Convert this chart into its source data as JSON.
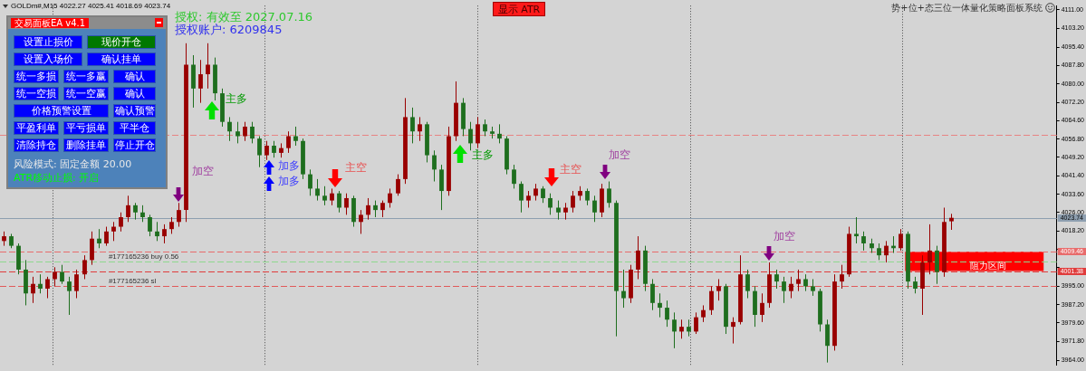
{
  "chart_data": [
    {
      "type": "candlestick",
      "title": "GOLDm#,M15 4022.27 4025.41 4018.69 4023.74",
      "categories": [
        null,
        null,
        null,
        null,
        null,
        null,
        null,
        null,
        null,
        null,
        null,
        null,
        null,
        null,
        null,
        null,
        null,
        null,
        null,
        null,
        null,
        null,
        null,
        null,
        null,
        null,
        null,
        null,
        null,
        null,
        null,
        null,
        null,
        null,
        null,
        null,
        null,
        null,
        null,
        null,
        null,
        null,
        null,
        null,
        null,
        null,
        null,
        null,
        null,
        null,
        null,
        null,
        null,
        null,
        null,
        null,
        null,
        null,
        null,
        null,
        null,
        null,
        null,
        null,
        null,
        null,
        null,
        null,
        null,
        null,
        null,
        null,
        null,
        null,
        null,
        null,
        null,
        null,
        null,
        null,
        null,
        null,
        null,
        null,
        null,
        null,
        null,
        null,
        null,
        null,
        null,
        null,
        null,
        null,
        null,
        null,
        null,
        null,
        null,
        null,
        null,
        null,
        null,
        null,
        null,
        null,
        null,
        null,
        null,
        null,
        null,
        null,
        null,
        null,
        null,
        null,
        null,
        null,
        null,
        null,
        null,
        null,
        null,
        null,
        null,
        null,
        null,
        null,
        null,
        null,
        null,
        null,
        null,
        null,
        null,
        null,
        null,
        null,
        null,
        null,
        null,
        null,
        null,
        null,
        null
      ],
      "ohlc": [
        [
          4014,
          4018,
          4012,
          4016
        ],
        [
          4016,
          4017,
          4011,
          4012
        ],
        [
          4012,
          4013,
          4000,
          4002
        ],
        [
          4002,
          4006,
          3987,
          3992
        ],
        [
          3992,
          3999,
          3988,
          3996
        ],
        [
          3996,
          4000,
          3992,
          3994
        ],
        [
          3994,
          3999,
          3990,
          3998
        ],
        [
          3998,
          4003,
          3995,
          4001
        ],
        [
          4001,
          4004,
          3996,
          3997
        ],
        [
          3997,
          3999,
          3983,
          3993
        ],
        [
          3993,
          4002,
          3990,
          4000
        ],
        [
          4000,
          4008,
          3998,
          4006
        ],
        [
          4006,
          4018,
          4004,
          4015
        ],
        [
          4015,
          4019,
          4011,
          4013
        ],
        [
          4013,
          4020,
          4012,
          4018
        ],
        [
          4018,
          4022,
          4014,
          4020
        ],
        [
          4020,
          4026,
          4018,
          4024
        ],
        [
          4024,
          4033,
          4022,
          4029
        ],
        [
          4029,
          4030,
          4023,
          4026
        ],
        [
          4026,
          4029,
          4022,
          4024
        ],
        [
          4024,
          4025,
          4016,
          4018
        ],
        [
          4018,
          4022,
          4014,
          4016
        ],
        [
          4016,
          4021,
          4013,
          4019
        ],
        [
          4019,
          4024,
          4017,
          4022
        ],
        [
          4022,
          4030,
          4020,
          4027
        ],
        [
          4027,
          4097,
          4022,
          4088
        ],
        [
          4088,
          4092,
          4070,
          4078
        ],
        [
          4078,
          4090,
          4072,
          4084
        ],
        [
          4084,
          4097,
          4078,
          4088
        ],
        [
          4088,
          4091,
          4073,
          4076
        ],
        [
          4076,
          4078,
          4062,
          4064
        ],
        [
          4064,
          4066,
          4056,
          4060
        ],
        [
          4060,
          4064,
          4055,
          4058
        ],
        [
          4058,
          4064,
          4056,
          4062
        ],
        [
          4062,
          4064,
          4055,
          4057
        ],
        [
          4057,
          4058,
          4045,
          4050
        ],
        [
          4050,
          4056,
          4048,
          4054
        ],
        [
          4054,
          4056,
          4049,
          4051
        ],
        [
          4051,
          4055,
          4049,
          4053
        ],
        [
          4053,
          4060,
          4051,
          4058
        ],
        [
          4058,
          4062,
          4054,
          4056
        ],
        [
          4056,
          4057,
          4040,
          4042
        ],
        [
          4042,
          4044,
          4033,
          4036
        ],
        [
          4036,
          4040,
          4031,
          4033
        ],
        [
          4033,
          4037,
          4029,
          4031
        ],
        [
          4031,
          4036,
          4029,
          4034
        ],
        [
          4034,
          4035,
          4026,
          4028
        ],
        [
          4028,
          4034,
          4025,
          4032
        ],
        [
          4032,
          4033,
          4020,
          4022
        ],
        [
          4022,
          4027,
          4017,
          4025
        ],
        [
          4025,
          4032,
          4023,
          4029
        ],
        [
          4029,
          4031,
          4024,
          4027
        ],
        [
          4027,
          4031,
          4024,
          4030
        ],
        [
          4030,
          4036,
          4028,
          4034
        ],
        [
          4034,
          4042,
          4033,
          4040
        ],
        [
          4040,
          4074,
          4038,
          4066
        ],
        [
          4066,
          4070,
          4055,
          4060
        ],
        [
          4060,
          4066,
          4056,
          4063
        ],
        [
          4063,
          4064,
          4047,
          4050
        ],
        [
          4050,
          4052,
          4039,
          4044
        ],
        [
          4044,
          4046,
          4027,
          4035
        ],
        [
          4035,
          4062,
          4033,
          4058
        ],
        [
          4058,
          4081,
          4056,
          4072
        ],
        [
          4072,
          4074,
          4058,
          4061
        ],
        [
          4061,
          4064,
          4052,
          4055
        ],
        [
          4055,
          4066,
          4053,
          4063
        ],
        [
          4063,
          4065,
          4058,
          4060
        ],
        [
          4060,
          4062,
          4057,
          4059
        ],
        [
          4059,
          4063,
          4055,
          4057
        ],
        [
          4057,
          4058,
          4042,
          4044
        ],
        [
          4044,
          4046,
          4036,
          4038
        ],
        [
          4038,
          4039,
          4026,
          4031
        ],
        [
          4031,
          4035,
          4028,
          4033
        ],
        [
          4033,
          4038,
          4031,
          4036
        ],
        [
          4036,
          4037,
          4030,
          4032
        ],
        [
          4032,
          4034,
          4025,
          4028
        ],
        [
          4028,
          4031,
          4023,
          4026
        ],
        [
          4026,
          4030,
          4023,
          4028
        ],
        [
          4028,
          4035,
          4026,
          4033
        ],
        [
          4033,
          4037,
          4031,
          4035
        ],
        [
          4035,
          4036,
          4029,
          4031
        ],
        [
          4031,
          4033,
          4022,
          4026
        ],
        [
          4026,
          4038,
          4024,
          4036
        ],
        [
          4036,
          4039,
          4028,
          4030
        ],
        [
          4030,
          4031,
          3974,
          3993
        ],
        [
          3993,
          4002,
          3986,
          3990
        ],
        [
          3990,
          4004,
          3988,
          4002
        ],
        [
          4002,
          4016,
          3998,
          4010
        ],
        [
          4010,
          4012,
          3993,
          3996
        ],
        [
          3996,
          3998,
          3985,
          3988
        ],
        [
          3988,
          3992,
          3982,
          3986
        ],
        [
          3986,
          3989,
          3978,
          3981
        ],
        [
          3981,
          3984,
          3969,
          3976
        ],
        [
          3976,
          3981,
          3973,
          3978
        ],
        [
          3978,
          3981,
          3974,
          3976
        ],
        [
          3976,
          3984,
          3975,
          3982
        ],
        [
          3982,
          3987,
          3980,
          3985
        ],
        [
          3985,
          3995,
          3983,
          3993
        ],
        [
          3993,
          3998,
          3989,
          3995
        ],
        [
          3995,
          3996,
          3975,
          3978
        ],
        [
          3978,
          3982,
          3971,
          3980
        ],
        [
          3980,
          4008,
          3979,
          4000
        ],
        [
          4000,
          4002,
          3990,
          3993
        ],
        [
          3993,
          3995,
          3978,
          3983
        ],
        [
          3983,
          3992,
          3980,
          3988
        ],
        [
          3988,
          4005,
          3986,
          4000
        ],
        [
          4000,
          4002,
          3994,
          3997
        ],
        [
          3997,
          3999,
          3988,
          3993
        ],
        [
          3993,
          3999,
          3990,
          3996
        ],
        [
          3996,
          4002,
          3993,
          3998
        ],
        [
          3998,
          4000,
          3993,
          3995
        ],
        [
          3995,
          3998,
          3991,
          3993
        ],
        [
          3993,
          3994,
          3976,
          3979
        ],
        [
          3979,
          3981,
          3963,
          3970
        ],
        [
          3970,
          4000,
          3968,
          3997
        ],
        [
          3997,
          4004,
          3994,
          4000
        ],
        [
          4000,
          4020,
          3999,
          4017
        ],
        [
          4017,
          4024,
          4013,
          4016
        ],
        [
          4016,
          4018,
          4010,
          4013
        ],
        [
          4013,
          4015,
          4009,
          4011
        ],
        [
          4011,
          4013,
          4006,
          4008
        ],
        [
          4008,
          4014,
          4005,
          4012
        ],
        [
          4012,
          4016,
          4009,
          4011
        ],
        [
          4011,
          4019,
          4010,
          4017
        ],
        [
          4017,
          4018,
          3994,
          3997
        ],
        [
          3997,
          3999,
          3992,
          3994
        ],
        [
          3994,
          4008,
          3983,
          4005
        ],
        [
          4005,
          4021,
          4000,
          4010
        ],
        [
          4010,
          4012,
          3996,
          4001
        ],
        [
          4001,
          4028,
          3999,
          4022
        ],
        [
          4022.27,
          4025.41,
          4018.69,
          4023.74
        ],
        null,
        null,
        null,
        null,
        null,
        null,
        null,
        null,
        null,
        null,
        null,
        null,
        null,
        null
      ],
      "colors": [
        "#990000",
        "#1e6e1e",
        "#1e6e1e",
        "#1e6e1e",
        "#990000",
        "#1e6e1e",
        "#990000",
        "#990000",
        "#1e6e1e",
        "#1e6e1e",
        "#990000",
        "#990000",
        "#990000",
        "#1e6e1e",
        "#990000",
        "#990000",
        "#990000",
        "#990000",
        "#1e6e1e",
        "#1e6e1e",
        "#1e6e1e",
        "#1e6e1e",
        "#990000",
        "#990000",
        "#990000",
        "#990000",
        "#1e6e1e",
        "#990000",
        "#990000",
        "#1e6e1e",
        "#1e6e1e",
        "#1e6e1e",
        "#1e6e1e",
        "#990000",
        "#1e6e1e",
        "#1e6e1e",
        "#990000",
        "#1e6e1e",
        "#990000",
        "#990000",
        "#1e6e1e",
        "#1e6e1e",
        "#1e6e1e",
        "#1e6e1e",
        "#1e6e1e",
        "#990000",
        "#1e6e1e",
        "#990000",
        "#1e6e1e",
        "#990000",
        "#990000",
        "#1e6e1e",
        "#990000",
        "#990000",
        "#990000",
        "#990000",
        "#1e6e1e",
        "#990000",
        "#1e6e1e",
        "#1e6e1e",
        "#1e6e1e",
        "#990000",
        "#990000",
        "#1e6e1e",
        "#1e6e1e",
        "#990000",
        "#1e6e1e",
        "#1e6e1e",
        "#1e6e1e",
        "#1e6e1e",
        "#1e6e1e",
        "#1e6e1e",
        "#990000",
        "#990000",
        "#1e6e1e",
        "#1e6e1e",
        "#1e6e1e",
        "#990000",
        "#990000",
        "#990000",
        "#1e6e1e",
        "#1e6e1e",
        "#990000",
        "#1e6e1e",
        "#1e6e1e",
        "#1e6e1e",
        "#990000",
        "#990000",
        "#1e6e1e",
        "#1e6e1e",
        "#1e6e1e",
        "#1e6e1e",
        "#1e6e1e",
        "#990000",
        "#1e6e1e",
        "#990000",
        "#990000",
        "#990000",
        "#990000",
        "#1e6e1e",
        "#990000",
        "#990000",
        "#1e6e1e",
        "#1e6e1e",
        "#990000",
        "#990000",
        "#1e6e1e",
        "#1e6e1e",
        "#990000",
        "#990000",
        "#1e6e1e",
        "#1e6e1e",
        "#1e6e1e",
        "#1e6e1e",
        "#990000",
        "#990000",
        "#990000",
        "#1e6e1e",
        "#1e6e1e",
        "#1e6e1e",
        "#1e6e1e",
        "#990000",
        "#1e6e1e",
        "#990000",
        "#1e6e1e",
        "#1e6e1e",
        "#990000",
        "#990000",
        "#1e6e1e",
        "#990000",
        "#990000",
        null,
        null,
        null,
        null,
        null,
        null,
        null,
        null,
        null,
        null,
        null,
        null,
        null,
        null
      ],
      "ylim": [
        3961.8,
        4112.8
      ],
      "yticks": [
        {
          "value": 4111,
          "label": "4111.00"
        },
        {
          "value": 4103.2,
          "label": "4103.20"
        },
        {
          "value": 4095.4,
          "label": "4095.40"
        },
        {
          "value": 4087.8,
          "label": "4087.80"
        },
        {
          "value": 4080,
          "label": "4080.00"
        },
        {
          "value": 4072.2,
          "label": "4072.20"
        },
        {
          "value": 4064.6,
          "label": "4064.60"
        },
        {
          "value": 4056.8,
          "label": "4056.80"
        },
        {
          "value": 4049.2,
          "label": "4049.20"
        },
        {
          "value": 4041.4,
          "label": "4041.40"
        },
        {
          "value": 4033.6,
          "label": "4033.60"
        },
        {
          "value": 4026,
          "label": "4026.00"
        },
        {
          "value": 4018.2,
          "label": "4018.20"
        },
        {
          "value": 4010.4,
          "label": null
        },
        {
          "value": 4002.8,
          "label": null
        },
        {
          "value": 3995,
          "label": "3995.00"
        },
        {
          "value": 3987.2,
          "label": "3987.20"
        },
        {
          "value": 3979.6,
          "label": "3979.60"
        },
        {
          "value": 3971.8,
          "label": "3971.80"
        },
        {
          "value": 3964,
          "label": "3964.00"
        }
      ],
      "tick_labels": "y",
      "ref_lines": [
        {
          "axis": "y",
          "value": 4058.5,
          "color": "#e88484",
          "line_style": "dashed"
        },
        {
          "axis": "y",
          "value": 4023.74,
          "label": "4023.74",
          "color": "#8e9fb0",
          "line_style": "solid"
        },
        {
          "axis": "y",
          "value": 4009.46,
          "label": "4009.46",
          "color": "#e86c6c",
          "line_style": "dashed"
        },
        {
          "axis": "y",
          "value": 4005.4,
          "label": "#177165236 buy 0.56",
          "color": "#8ed88e",
          "line_style": "dashed"
        },
        {
          "axis": "y",
          "value": 4001.38,
          "label": "4001.38",
          "color": "#e03c3c",
          "line_style": "dashed"
        },
        {
          "axis": "y",
          "value": 3995.2,
          "label": "#177165236 sl",
          "color": "#e05a5a",
          "line_style": "dashed"
        }
      ],
      "bands": [
        {
          "axis": "y",
          "from": 4001.38,
          "to": 4009.46,
          "label": "阻力区间",
          "color": "#ff0000"
        }
      ],
      "annotations": [
        "授权: 有效至 2027.07.16",
        "授权账户: 6209845",
        "显示 ATR",
        "势+位+态三位一体量化策略面板系统",
        "加空",
        "主多",
        "加多",
        "加多",
        "主空",
        "主多",
        "主空",
        "加空",
        "加空"
      ]
    },
    {
      "type": "other",
      "title": "交易面板EA v4.1",
      "annotations": [
        "设置止损价",
        "现价开仓",
        "设置入场价",
        "确认挂单",
        "统一多损",
        "统一多赢",
        "确认",
        "统一空损",
        "统一空赢",
        "确认",
        "价格预警设置",
        "确认预警",
        "平盈利单",
        "平亏损单",
        "平半仓",
        "清除持仓",
        "删除挂单",
        "停止开仓",
        "风险模式: 固定金额 20.00",
        "ATR移动止损: 开启"
      ]
    }
  ]
}
